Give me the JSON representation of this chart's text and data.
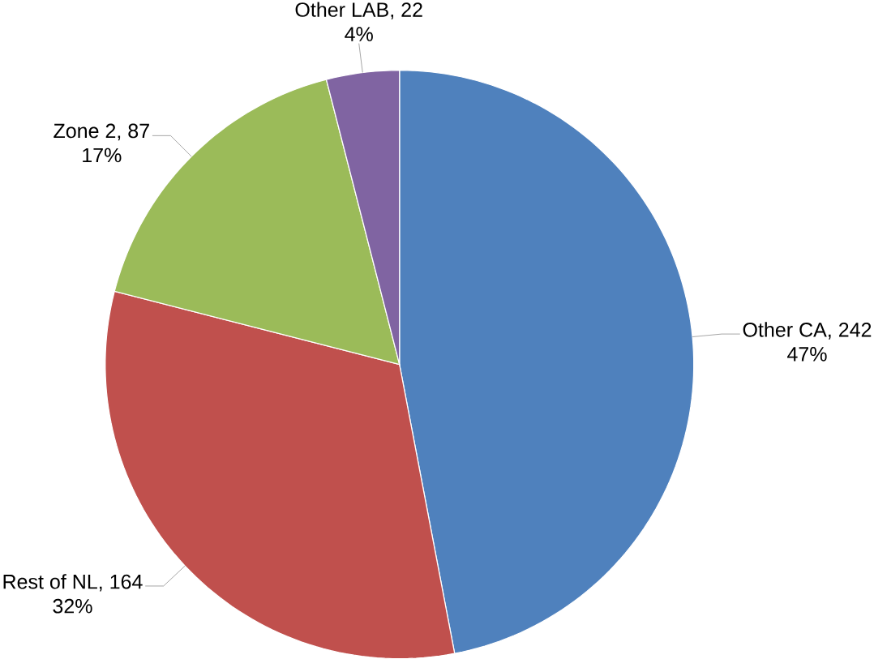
{
  "chart_data": {
    "type": "pie",
    "categories": [
      "Other CA, 242",
      "Rest of NL, 164",
      "Zone 2, 87",
      "Other LAB, 22"
    ],
    "values": [
      47,
      32,
      17,
      4
    ],
    "colors": [
      "#4f81bd",
      "#c0504d",
      "#9bbb59",
      "#8064a2"
    ],
    "value_labels": [
      "47%",
      "32%",
      "17%",
      "4%"
    ]
  }
}
